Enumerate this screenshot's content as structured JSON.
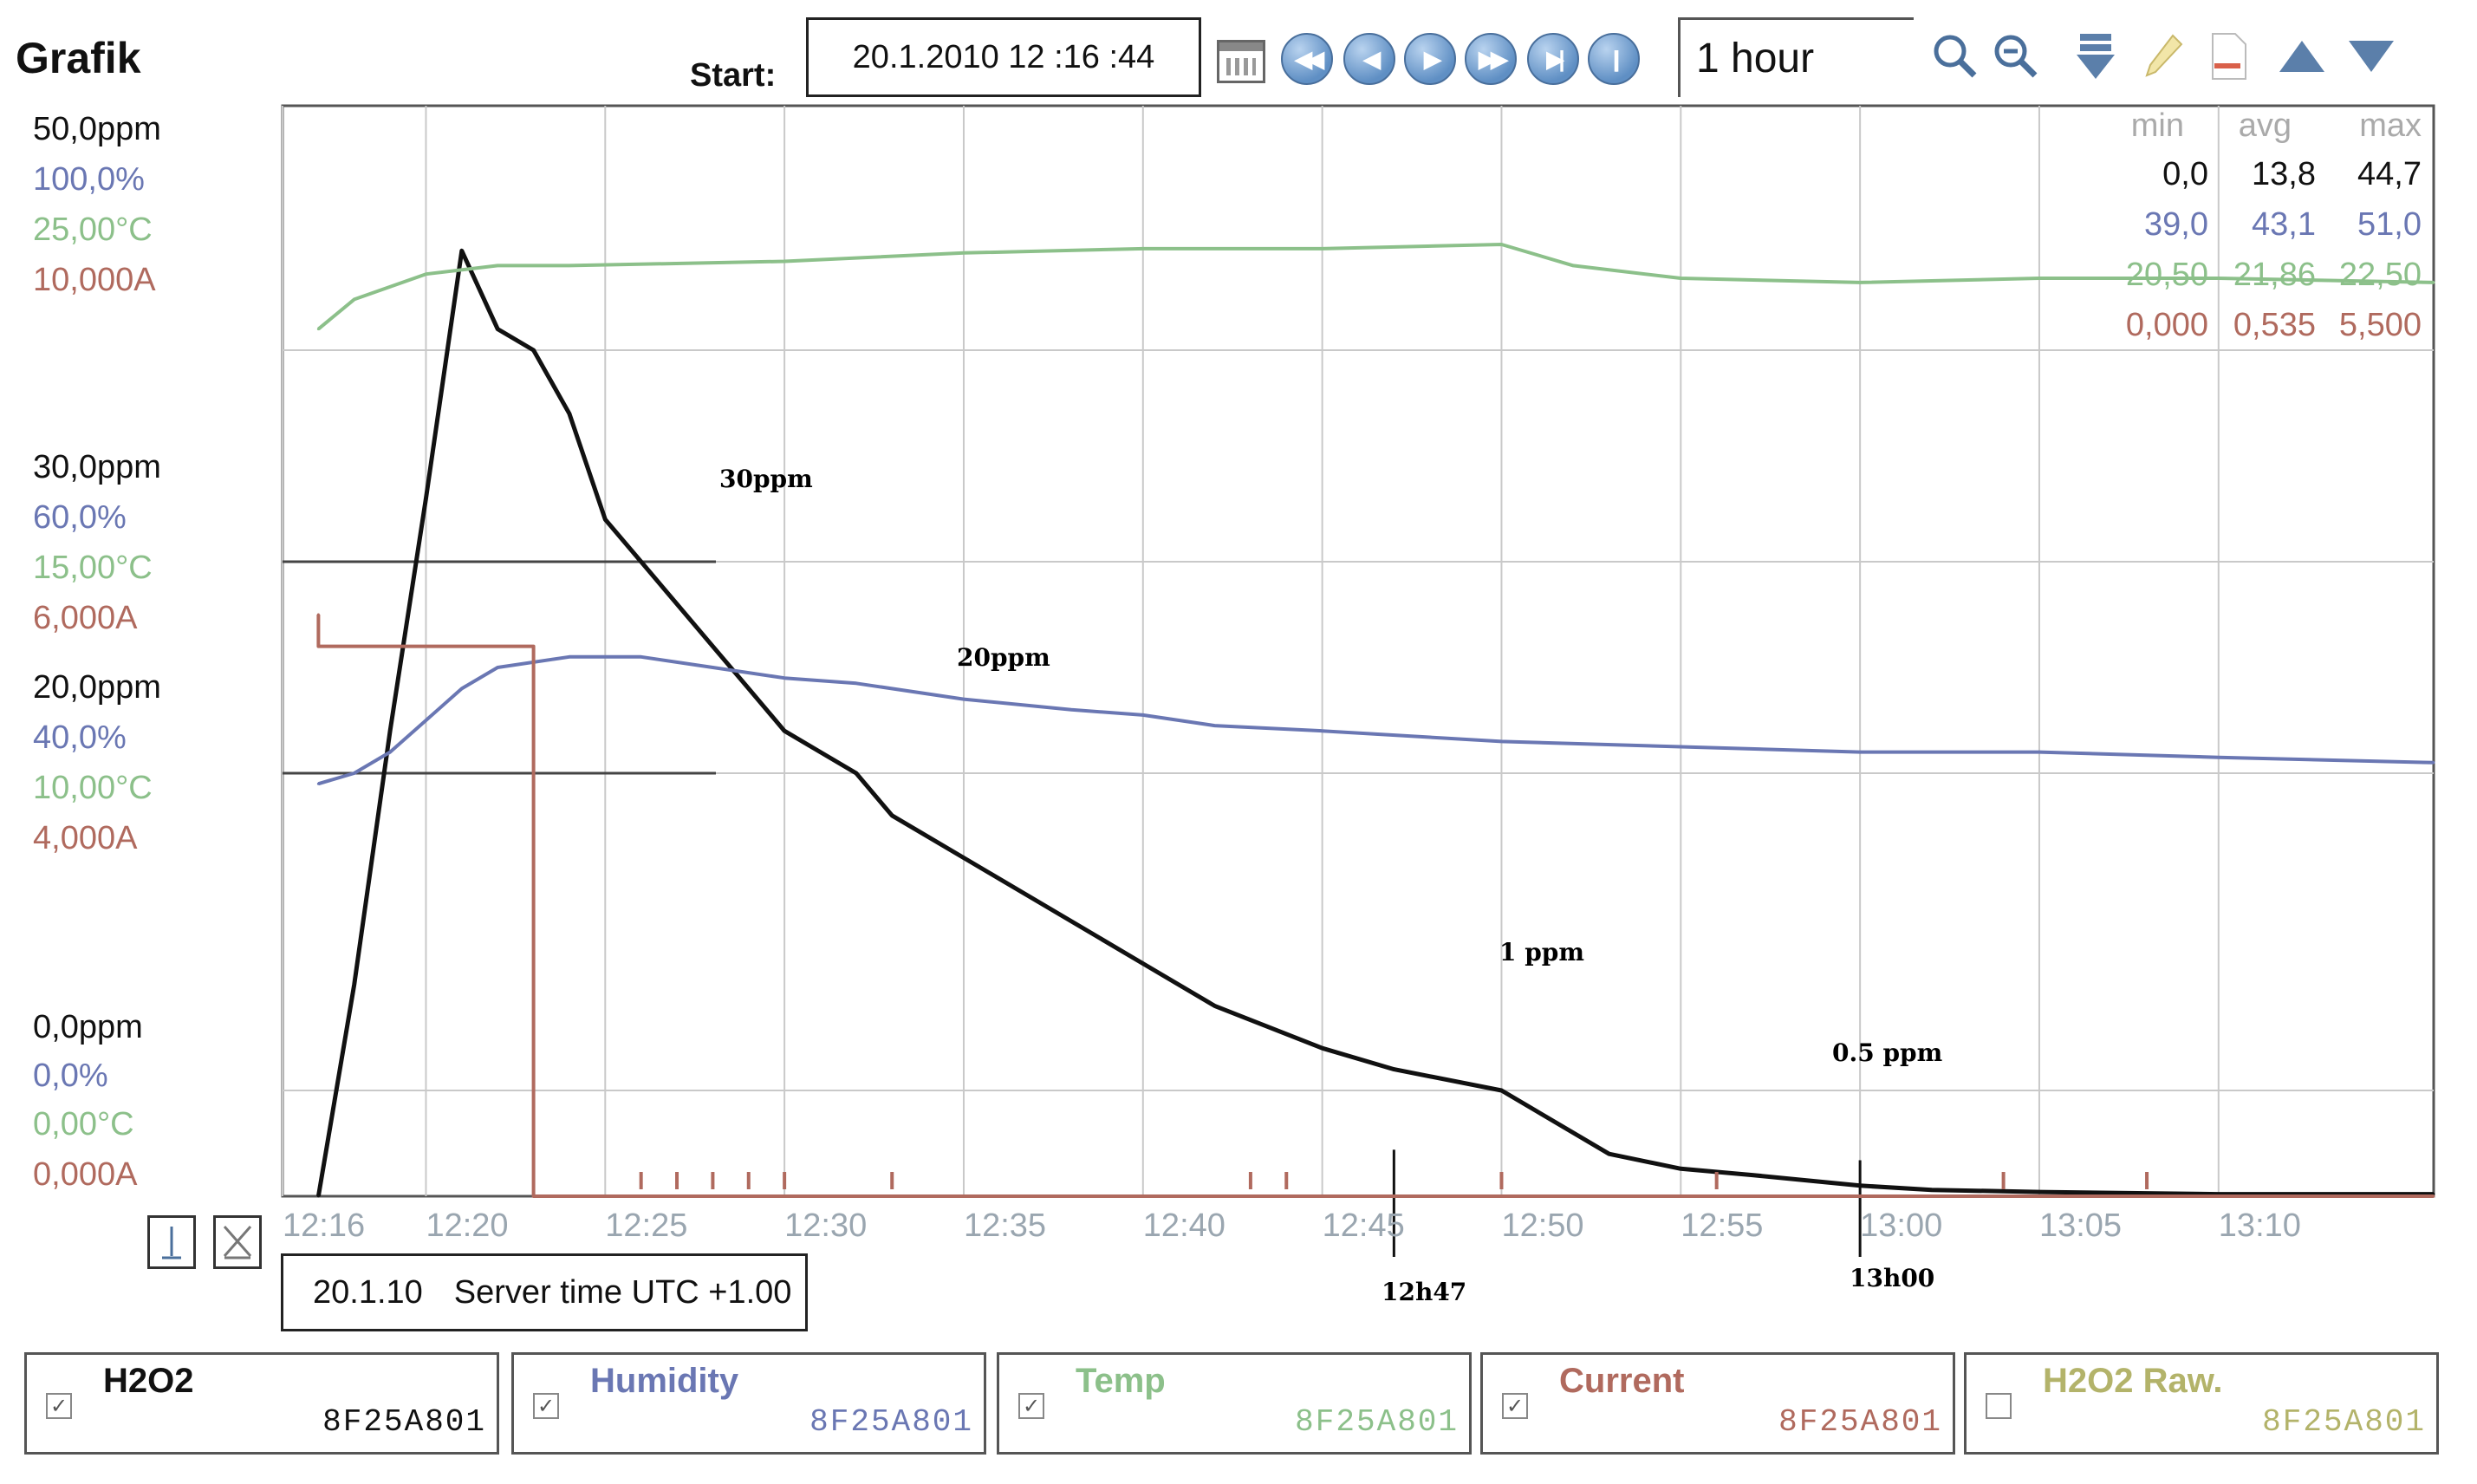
{
  "header": {
    "title": "Grafik",
    "start_label": "Start:",
    "start_value": "20.1.2010 12 :16 :44",
    "time_range": "1 hour"
  },
  "icons": [
    "calendar-icon",
    "rewind-start-icon",
    "step-back-icon",
    "play-icon",
    "fast-forward-icon",
    "skip-end-icon",
    "pause-end-icon",
    "zoom-in-icon",
    "zoom-out-icon",
    "download-icon",
    "pencil-icon",
    "export-icon",
    "arrow-up-icon",
    "arrow-down-icon"
  ],
  "axis_labels": {
    "top": [
      "50,0ppm",
      "100,0%",
      "25,00°C",
      "10,000A"
    ],
    "mid": [
      "30,0ppm",
      "60,0%",
      "15,00°C",
      "6,000A"
    ],
    "low": [
      "20,0ppm",
      "40,0%",
      "10,00°C",
      "4,000A"
    ],
    "zero": [
      "0,0ppm",
      "0,0%",
      "0,00°C",
      "0,000A"
    ]
  },
  "colors": {
    "h2o2": "#111111",
    "humidity": "#6a77b3",
    "temp": "#8cc08a",
    "current": "#b06a5e",
    "h2o2_raw": "#b3b36a",
    "grid": "#c9c9c9"
  },
  "stats": {
    "headers": [
      "min",
      "avg",
      "max"
    ],
    "rows": [
      [
        "0,0",
        "13,8",
        "44,7"
      ],
      [
        "39,0",
        "43,1",
        "51,0"
      ],
      [
        "20,50",
        "21,86",
        "22,50"
      ],
      [
        "0,000",
        "0,535",
        "5,500"
      ]
    ]
  },
  "annotations": {
    "ppm30": "30ppm",
    "ppm20": "20ppm",
    "ppm1": "1 ppm",
    "ppm05": "0.5 ppm",
    "t1247": "12h47",
    "t1300": "13h00"
  },
  "footer": {
    "server_date": "20.1.10",
    "server_time": "Server time UTC +1.00"
  },
  "legend": [
    {
      "name": "H2O2",
      "id": "8F25A801",
      "checked": true
    },
    {
      "name": "Humidity",
      "id": "8F25A801",
      "checked": true
    },
    {
      "name": "Temp",
      "id": "8F25A801",
      "checked": true
    },
    {
      "name": "Current",
      "id": "8F25A801",
      "checked": true
    },
    {
      "name": "H2O2 Raw.",
      "id": "8F25A801",
      "checked": false
    }
  ],
  "chart_data": {
    "type": "line",
    "x_tick_labels": [
      "12:16",
      "12:20",
      "12:25",
      "12:30",
      "12:35",
      "12:40",
      "12:45",
      "12:50",
      "12:55",
      "13:00",
      "13:05",
      "13:10"
    ],
    "x_range": [
      "12:16",
      "13:16"
    ],
    "series": [
      {
        "name": "H2O2",
        "unit": "ppm",
        "y_range": [
          0,
          50
        ],
        "x": [
          "12:17",
          "12:18",
          "12:19",
          "12:20",
          "12:21",
          "12:22",
          "12:23",
          "12:24",
          "12:25",
          "12:26",
          "12:27",
          "12:28",
          "12:29",
          "12:30",
          "12:31",
          "12:32",
          "12:33",
          "12:35",
          "12:37",
          "12:40",
          "12:42",
          "12:45",
          "12:47",
          "12:50",
          "12:51",
          "12:53",
          "12:55",
          "12:57",
          "13:00",
          "13:02",
          "13:05",
          "13:10",
          "13:16"
        ],
        "values": [
          0,
          10,
          22,
          33,
          44.7,
          41,
          40,
          37,
          32,
          30,
          28,
          26,
          24,
          22,
          21,
          20,
          18,
          16,
          14,
          11,
          9,
          7,
          6,
          5,
          4,
          2,
          1.3,
          1,
          0.5,
          0.3,
          0.2,
          0.1,
          0.1
        ]
      },
      {
        "name": "Humidity",
        "unit": "%",
        "y_range": [
          0,
          100
        ],
        "x": [
          "12:17",
          "12:18",
          "12:19",
          "12:20",
          "12:21",
          "12:22",
          "12:24",
          "12:26",
          "12:28",
          "12:30",
          "12:32",
          "12:35",
          "12:38",
          "12:40",
          "12:42",
          "12:45",
          "12:50",
          "12:55",
          "13:00",
          "13:05",
          "13:10",
          "13:16"
        ],
        "values": [
          39,
          40,
          42,
          45,
          48,
          50,
          51,
          51,
          50,
          49,
          48.5,
          47,
          46,
          45.5,
          44.5,
          44,
          43,
          42.5,
          42,
          42,
          41.5,
          41
        ]
      },
      {
        "name": "Temp",
        "unit": "°C",
        "y_range": [
          0,
          25
        ],
        "x": [
          "12:17",
          "12:18",
          "12:20",
          "12:22",
          "12:24",
          "12:30",
          "12:35",
          "12:40",
          "12:45",
          "12:50",
          "12:52",
          "12:55",
          "13:00",
          "13:05",
          "13:10",
          "13:16"
        ],
        "values": [
          20.5,
          21.2,
          21.8,
          22.0,
          22.0,
          22.1,
          22.3,
          22.4,
          22.4,
          22.5,
          22.0,
          21.7,
          21.6,
          21.7,
          21.7,
          21.6
        ]
      },
      {
        "name": "Current",
        "unit": "A",
        "y_range": [
          0,
          10
        ],
        "x": [
          "12:17",
          "12:17",
          "12:23",
          "12:23",
          "13:16"
        ],
        "values": [
          5.5,
          5.2,
          5.2,
          0,
          0
        ]
      }
    ]
  }
}
